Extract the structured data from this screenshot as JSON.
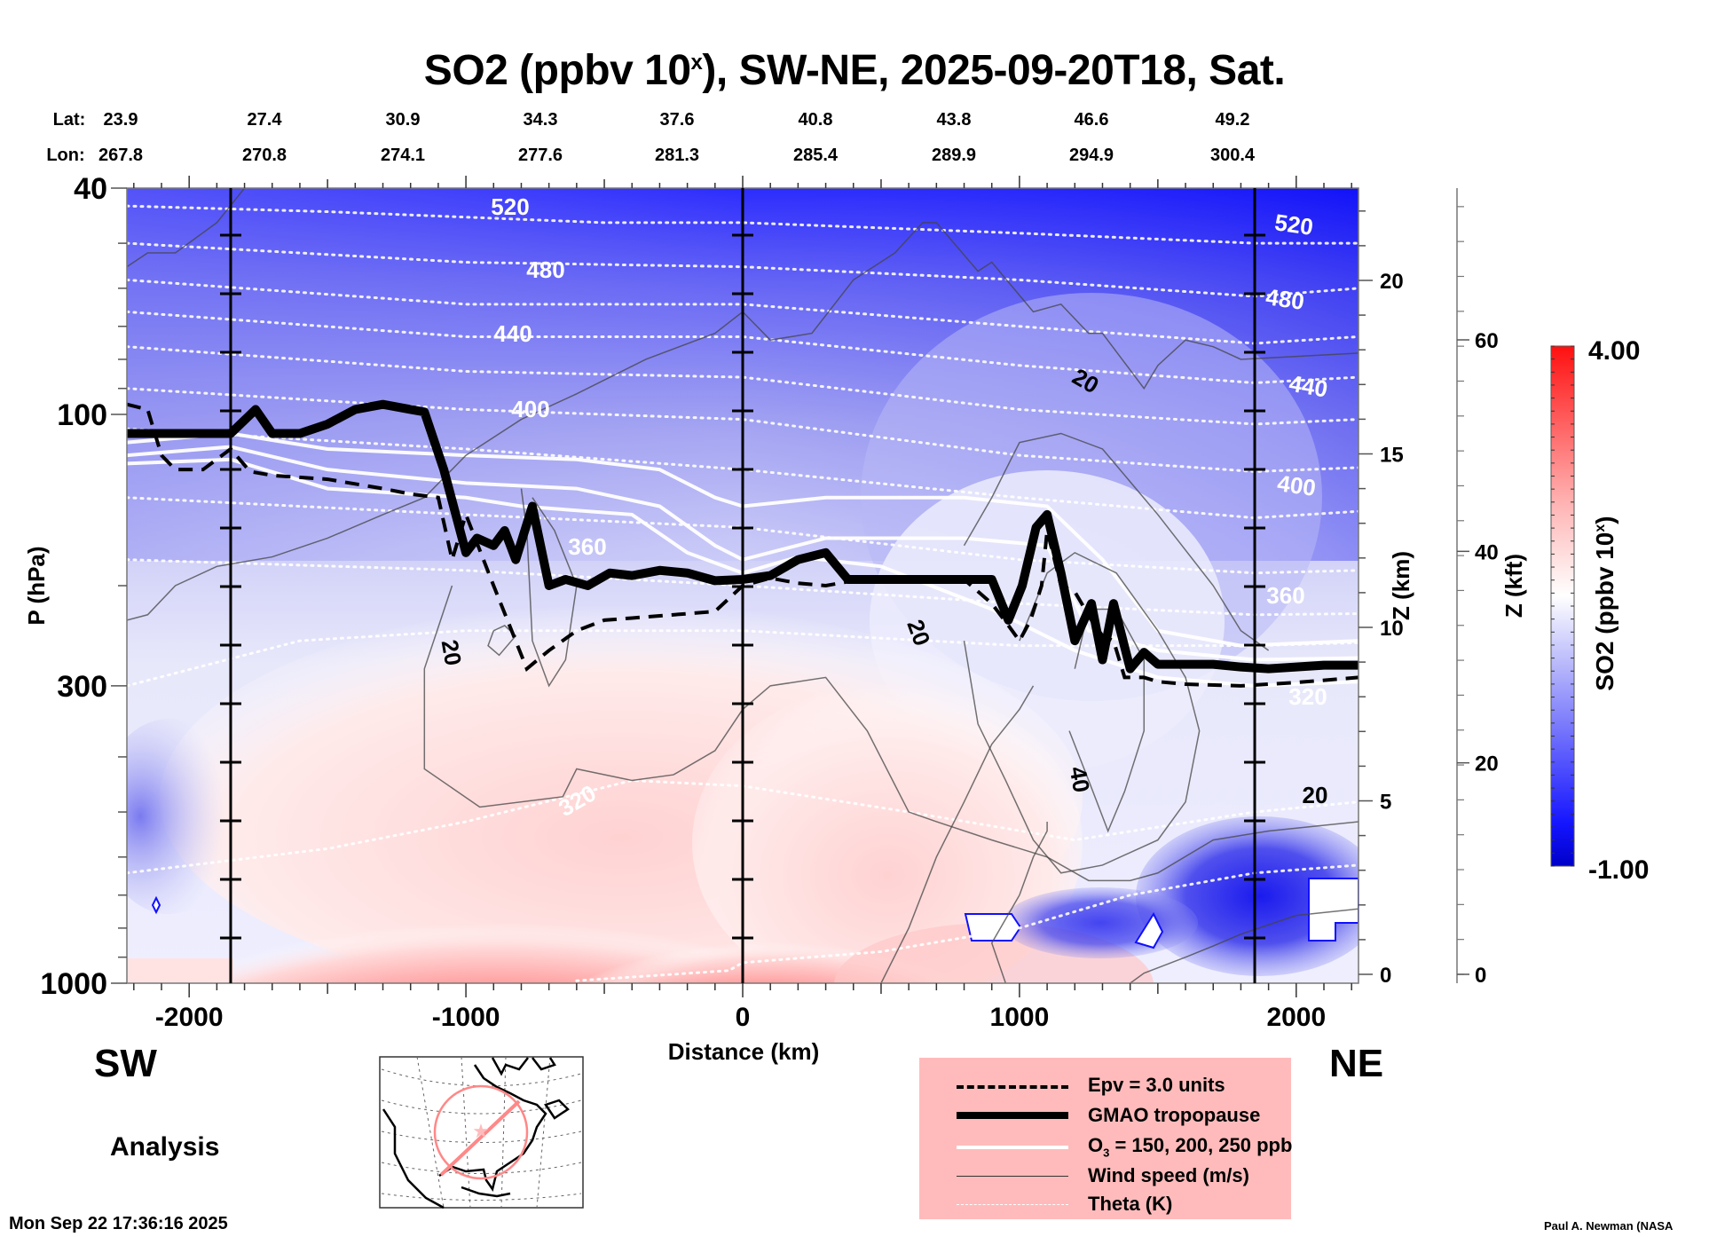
{
  "title": {
    "main": "SO2 (ppbv 10",
    "sup": "x",
    "rest": "), SW-NE, 2025-09-20T18, Sat."
  },
  "latlon": {
    "lat_label": "Lat:",
    "lon_label": "Lon:",
    "lat": [
      "23.9",
      "27.4",
      "30.9",
      "34.3",
      "37.6",
      "40.8",
      "43.8",
      "46.6",
      "49.2"
    ],
    "lon": [
      "267.8",
      "270.8",
      "274.1",
      "277.6",
      "281.3",
      "285.4",
      "289.9",
      "294.9",
      "300.4"
    ]
  },
  "labels": {
    "sw": "SW",
    "ne": "NE",
    "analysis": "Analysis",
    "timestamp": "Mon Sep 22 17:36:16 2025",
    "credit": "Paul A. Newman (NASA"
  },
  "legend": {
    "items": [
      {
        "label": "Epv = 3.0 units",
        "style": "dashed"
      },
      {
        "label": "GMAO tropopause",
        "style": "thick"
      },
      {
        "label": "O3 = 150, 200, 250 ppb",
        "style": "white"
      },
      {
        "label": "Wind speed (m/s)",
        "style": "thin"
      },
      {
        "label": "Theta (K)",
        "style": "dotted"
      }
    ],
    "background": "#ffbbbb"
  },
  "colorbar": {
    "label": "SO2 (ppbv 10",
    "label_sup": "x",
    "label_end": ")",
    "max_label": "4.00",
    "min_label": "-1.00",
    "min": -1.0,
    "max": 4.0,
    "colors": [
      "#0000d0",
      "#ffffff",
      "#ff0000"
    ]
  },
  "chart_data": {
    "type": "heatmap",
    "title": "SO2 (ppbv 10^x), SW-NE, 2025-09-20T18, Sat.",
    "xlabel": "Distance (km)",
    "ylabel": "P (hPa)",
    "y2label": "Z (km)",
    "y3label": "Z (kft)",
    "xlim": [
      -2225,
      2225
    ],
    "ylim": [
      1000,
      40
    ],
    "yscale": "log",
    "x_ticks": [
      -2000,
      -1000,
      0,
      1000,
      2000
    ],
    "x_tick_labels": [
      "-2000",
      "-1000",
      "0",
      "1000",
      "2000"
    ],
    "y_ticks": [
      40,
      100,
      300,
      1000
    ],
    "y_tick_labels": [
      "40",
      "100",
      "300",
      "1000"
    ],
    "z_km_ticks": [
      0,
      5,
      10,
      15,
      20
    ],
    "z_km_labels": [
      "0",
      "5",
      "10",
      "15",
      "20"
    ],
    "z_kft_ticks": [
      0,
      20,
      40,
      60
    ],
    "z_kft_labels": [
      "0",
      "20",
      "40",
      "60"
    ],
    "section_lines_km": [
      -1850,
      0,
      1850
    ],
    "tropopause": {
      "name": "GMAO tropopause",
      "x": [
        -2225,
        -1850,
        -1760,
        -1700,
        -1600,
        -1500,
        -1400,
        -1300,
        -1200,
        -1150,
        -1080,
        -1000,
        -960,
        -900,
        -860,
        -820,
        -760,
        -700,
        -640,
        -560,
        -480,
        -400,
        -300,
        -200,
        -100,
        0,
        100,
        200,
        300,
        380,
        460,
        600,
        800,
        900,
        960,
        1010,
        1060,
        1100,
        1150,
        1200,
        1260,
        1300,
        1340,
        1400,
        1450,
        1500,
        1600,
        1700,
        1800,
        1900,
        2000,
        2100,
        2225
      ],
      "p": [
        108,
        108,
        98,
        108,
        108,
        104,
        98,
        96,
        98,
        99,
        125,
        175,
        165,
        170,
        160,
        180,
        145,
        200,
        195,
        200,
        190,
        192,
        188,
        190,
        196,
        195,
        192,
        180,
        175,
        195,
        195,
        195,
        195,
        195,
        230,
        200,
        158,
        150,
        190,
        250,
        215,
        270,
        215,
        280,
        262,
        275,
        275,
        275,
        278,
        280,
        278,
        276,
        276
      ]
    },
    "epv3": {
      "name": "Epv = 3.0 units",
      "x": [
        -2225,
        -2150,
        -2100,
        -2050,
        -1950,
        -1850,
        -1780,
        -1700,
        -1500,
        -1300,
        -1200,
        -1100,
        -1050,
        -1000,
        -900,
        -850,
        -780,
        -700,
        -600,
        -500,
        -400,
        -300,
        -200,
        -100,
        0,
        100,
        200,
        300,
        400,
        500,
        800,
        900,
        960,
        1000,
        1040,
        1080,
        1100,
        1150,
        1200,
        1260,
        1300,
        1340,
        1380,
        1450,
        1500,
        1600,
        1800,
        2000,
        2225
      ],
      "p": [
        96,
        98,
        118,
        125,
        125,
        115,
        126,
        128,
        130,
        135,
        138,
        140,
        180,
        150,
        200,
        230,
        280,
        260,
        240,
        230,
        228,
        226,
        224,
        222,
        200,
        194,
        198,
        200,
        196,
        194,
        195,
        215,
        235,
        250,
        230,
        200,
        160,
        200,
        205,
        230,
        245,
        250,
        290,
        290,
        295,
        298,
        300,
        296,
        290
      ]
    },
    "theta_levels_K": [
      320,
      360,
      400,
      440,
      480,
      520
    ],
    "wind_contour_levels_ms": [
      20,
      40
    ],
    "o3_levels_ppb": [
      150,
      200,
      250
    ],
    "features": {
      "so2_max_region": "near surface, -1500 to 700 km, up to ~600 hPa",
      "so2_min_region": "upper levels (40-70 hPa) and lower right near 2000 km"
    }
  }
}
